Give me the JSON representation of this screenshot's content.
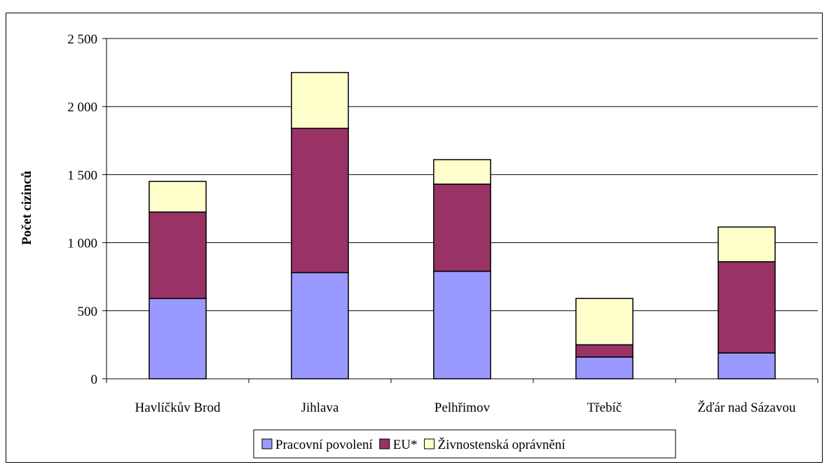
{
  "chart_data": {
    "type": "bar",
    "stacked": true,
    "title": "",
    "xlabel": "",
    "ylabel": "Počet cizinců",
    "ylim": [
      0,
      2500
    ],
    "yticks": [
      0,
      500,
      1000,
      1500,
      2000,
      2500
    ],
    "ytick_labels": [
      "0",
      "500",
      "1 000",
      "1 500",
      "2 000",
      "2 500"
    ],
    "categories": [
      "Havlíčkův Brod",
      "Jihlava",
      "Pelhřimov",
      "Třebíč",
      "Žďár nad Sázavou"
    ],
    "series": [
      {
        "name": "Pracovní povolení",
        "color": "#9999ff",
        "values": [
          590,
          780,
          790,
          160,
          190
        ]
      },
      {
        "name": "EU*",
        "color": "#993366",
        "values": [
          635,
          1060,
          640,
          90,
          670
        ]
      },
      {
        "name": "Živnostenská oprávnění",
        "color": "#ffffcc",
        "values": [
          225,
          410,
          180,
          340,
          255
        ]
      }
    ],
    "grid": true,
    "legend_position": "bottom"
  }
}
